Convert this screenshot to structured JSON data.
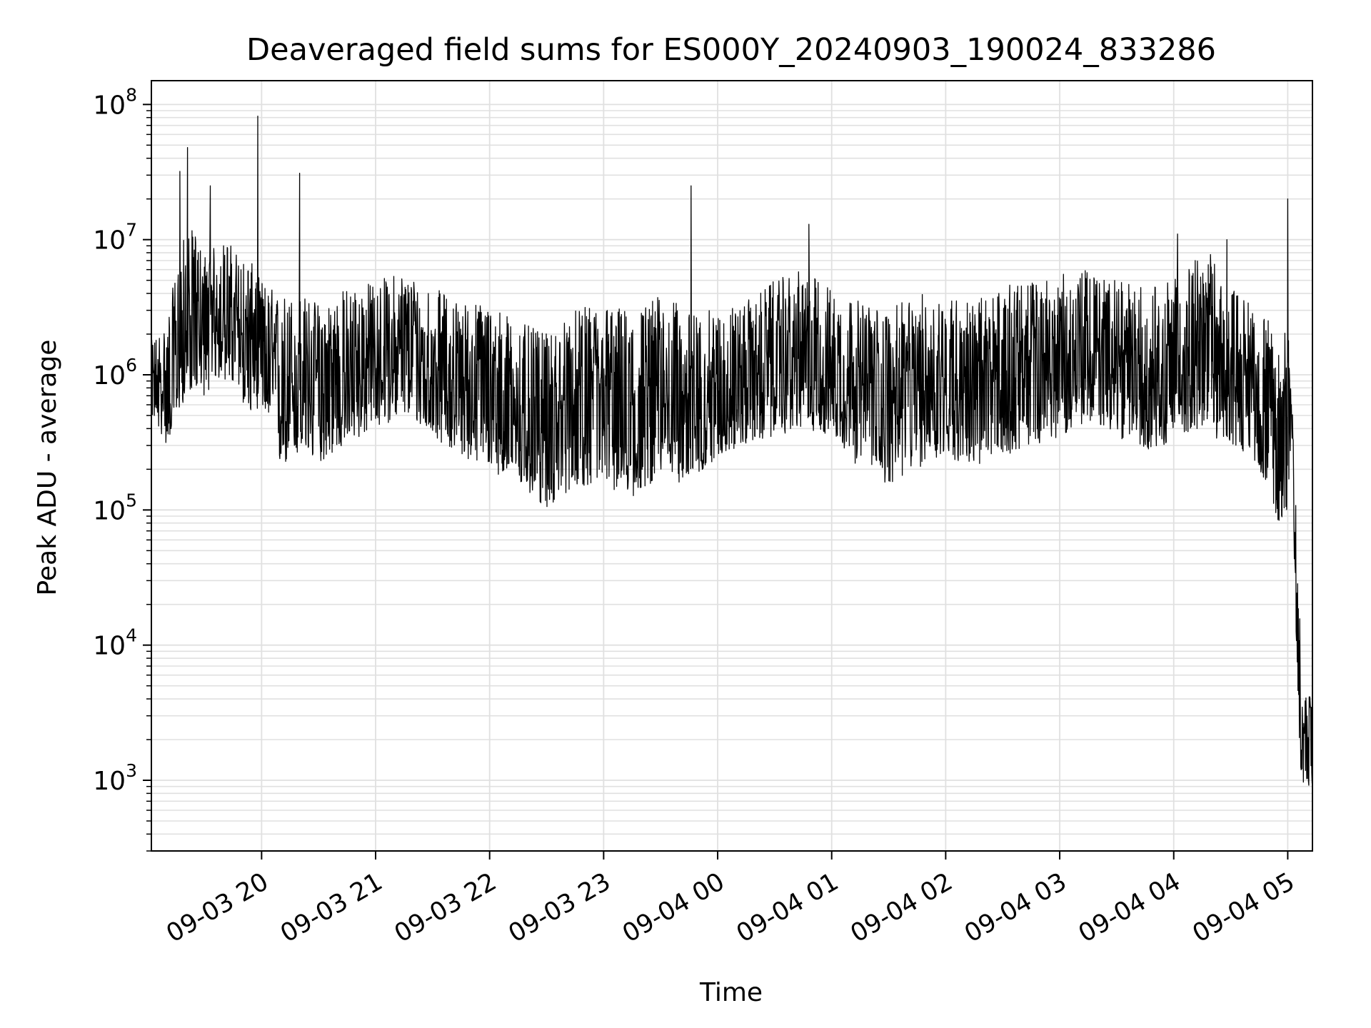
{
  "chart_data": {
    "type": "line",
    "title": "Deaveraged field sums for ES000Y_20240903_190024_833286",
    "xlabel": "Time",
    "ylabel": "Peak ADU - average",
    "y_scale": "log",
    "ylim": [
      300,
      150000000
    ],
    "xlim": [
      "2024-09-03 19:02",
      "2024-09-04 05:13"
    ],
    "grid": true,
    "line_color": "#000000",
    "grid_color": "#e0e0e0",
    "y_ticks": [
      {
        "value": 1000,
        "base": "10",
        "exp": "3"
      },
      {
        "value": 10000,
        "base": "10",
        "exp": "4"
      },
      {
        "value": 100000,
        "base": "10",
        "exp": "5"
      },
      {
        "value": 1000000,
        "base": "10",
        "exp": "6"
      },
      {
        "value": 10000000,
        "base": "10",
        "exp": "7"
      },
      {
        "value": 100000000,
        "base": "10",
        "exp": "8"
      }
    ],
    "x_ticks": [
      {
        "time": "2024-09-03 20:00",
        "label": "09-03 20"
      },
      {
        "time": "2024-09-03 21:00",
        "label": "09-03 21"
      },
      {
        "time": "2024-09-03 22:00",
        "label": "09-03 22"
      },
      {
        "time": "2024-09-03 23:00",
        "label": "09-03 23"
      },
      {
        "time": "2024-09-04 00:00",
        "label": "09-04 00"
      },
      {
        "time": "2024-09-04 01:00",
        "label": "09-04 01"
      },
      {
        "time": "2024-09-04 02:00",
        "label": "09-04 02"
      },
      {
        "time": "2024-09-04 03:00",
        "label": "09-04 03"
      },
      {
        "time": "2024-09-04 04:00",
        "label": "09-04 04"
      },
      {
        "time": "2024-09-04 05:00",
        "label": "09-04 05"
      }
    ],
    "series": [
      {
        "x": [
          "2024-09-03 19:02",
          "2024-09-03 19:10",
          "2024-09-03 19:18",
          "2024-09-03 19:24",
          "2024-09-03 19:30",
          "2024-09-03 19:36",
          "2024-09-03 19:42",
          "2024-09-03 19:48",
          "2024-09-03 19:54",
          "2024-09-03 20:00",
          "2024-09-03 20:10",
          "2024-09-03 20:20",
          "2024-09-03 20:30",
          "2024-09-03 20:45",
          "2024-09-03 21:00",
          "2024-09-03 21:15",
          "2024-09-03 21:30",
          "2024-09-03 21:45",
          "2024-09-03 22:00",
          "2024-09-03 22:15",
          "2024-09-03 22:30",
          "2024-09-03 22:45",
          "2024-09-03 23:00",
          "2024-09-03 23:15",
          "2024-09-03 23:30",
          "2024-09-03 23:45",
          "2024-09-04 00:00",
          "2024-09-04 00:15",
          "2024-09-04 00:30",
          "2024-09-04 00:45",
          "2024-09-04 01:00",
          "2024-09-04 01:15",
          "2024-09-04 01:30",
          "2024-09-04 01:45",
          "2024-09-04 02:00",
          "2024-09-04 02:15",
          "2024-09-04 02:30",
          "2024-09-04 02:45",
          "2024-09-04 03:00",
          "2024-09-04 03:15",
          "2024-09-04 03:30",
          "2024-09-04 03:45",
          "2024-09-04 04:00",
          "2024-09-04 04:10",
          "2024-09-04 04:20",
          "2024-09-04 04:30",
          "2024-09-04 04:40",
          "2024-09-04 04:50",
          "2024-09-04 04:55",
          "2024-09-04 05:00",
          "2024-09-04 05:02",
          "2024-09-04 05:04",
          "2024-09-04 05:06",
          "2024-09-04 05:08",
          "2024-09-04 05:10",
          "2024-09-04 05:13"
        ],
        "y": [
          900000,
          700000,
          1500000,
          3000000,
          2000000,
          2500000,
          3000000,
          2000000,
          1800000,
          1500000,
          700000,
          900000,
          800000,
          900000,
          1200000,
          1500000,
          1100000,
          900000,
          800000,
          500000,
          450000,
          600000,
          700000,
          500000,
          800000,
          600000,
          700000,
          900000,
          1000000,
          1300000,
          1100000,
          800000,
          700000,
          900000,
          900000,
          800000,
          1000000,
          1100000,
          1200000,
          1300000,
          1200000,
          1000000,
          1100000,
          1500000,
          1700000,
          1000000,
          900000,
          600000,
          300000,
          900000,
          700000,
          50000,
          5000,
          2000,
          2500,
          2000
        ],
        "envelope_low": [
          500000,
          300000,
          600000,
          800000,
          700000,
          900000,
          900000,
          700000,
          500000,
          600000,
          200000,
          250000,
          220000,
          300000,
          400000,
          500000,
          350000,
          250000,
          200000,
          150000,
          100000,
          150000,
          150000,
          120000,
          180000,
          150000,
          250000,
          300000,
          350000,
          400000,
          350000,
          200000,
          150000,
          200000,
          250000,
          200000,
          250000,
          300000,
          350000,
          450000,
          350000,
          280000,
          300000,
          400000,
          350000,
          300000,
          250000,
          150000,
          80000,
          100000,
          300000,
          20000,
          1500,
          900,
          1000,
          600
        ],
        "envelope_high": [
          1800000,
          2500000,
          10000000,
          12000000,
          8000000,
          9000000,
          10000000,
          8000000,
          7000000,
          5000000,
          4000000,
          4000000,
          3500000,
          4500000,
          5000000,
          6000000,
          4500000,
          3500000,
          3500000,
          2500000,
          2000000,
          3000000,
          3500000,
          3000000,
          4000000,
          3000000,
          3000000,
          3500000,
          5000000,
          6000000,
          4500000,
          3500000,
          3000000,
          4000000,
          4000000,
          3500000,
          4500000,
          5000000,
          5500000,
          6000000,
          5000000,
          4500000,
          5000000,
          7000000,
          8000000,
          4500000,
          3500000,
          2500000,
          1500000,
          2500000,
          1200000,
          300000,
          20000,
          4500,
          4500,
          4000
        ],
        "spikes": [
          {
            "x": "2024-09-03 19:17",
            "y": 32000000
          },
          {
            "x": "2024-09-03 19:21",
            "y": 48000000
          },
          {
            "x": "2024-09-03 19:33",
            "y": 25000000
          },
          {
            "x": "2024-09-03 19:58",
            "y": 82000000
          },
          {
            "x": "2024-09-03 20:20",
            "y": 31000000
          },
          {
            "x": "2024-09-03 23:46",
            "y": 25000000
          },
          {
            "x": "2024-09-04 00:48",
            "y": 13000000
          },
          {
            "x": "2024-09-04 04:02",
            "y": 11000000
          },
          {
            "x": "2024-09-04 04:28",
            "y": 10000000
          },
          {
            "x": "2024-09-04 05:00",
            "y": 20000000
          }
        ]
      }
    ]
  }
}
